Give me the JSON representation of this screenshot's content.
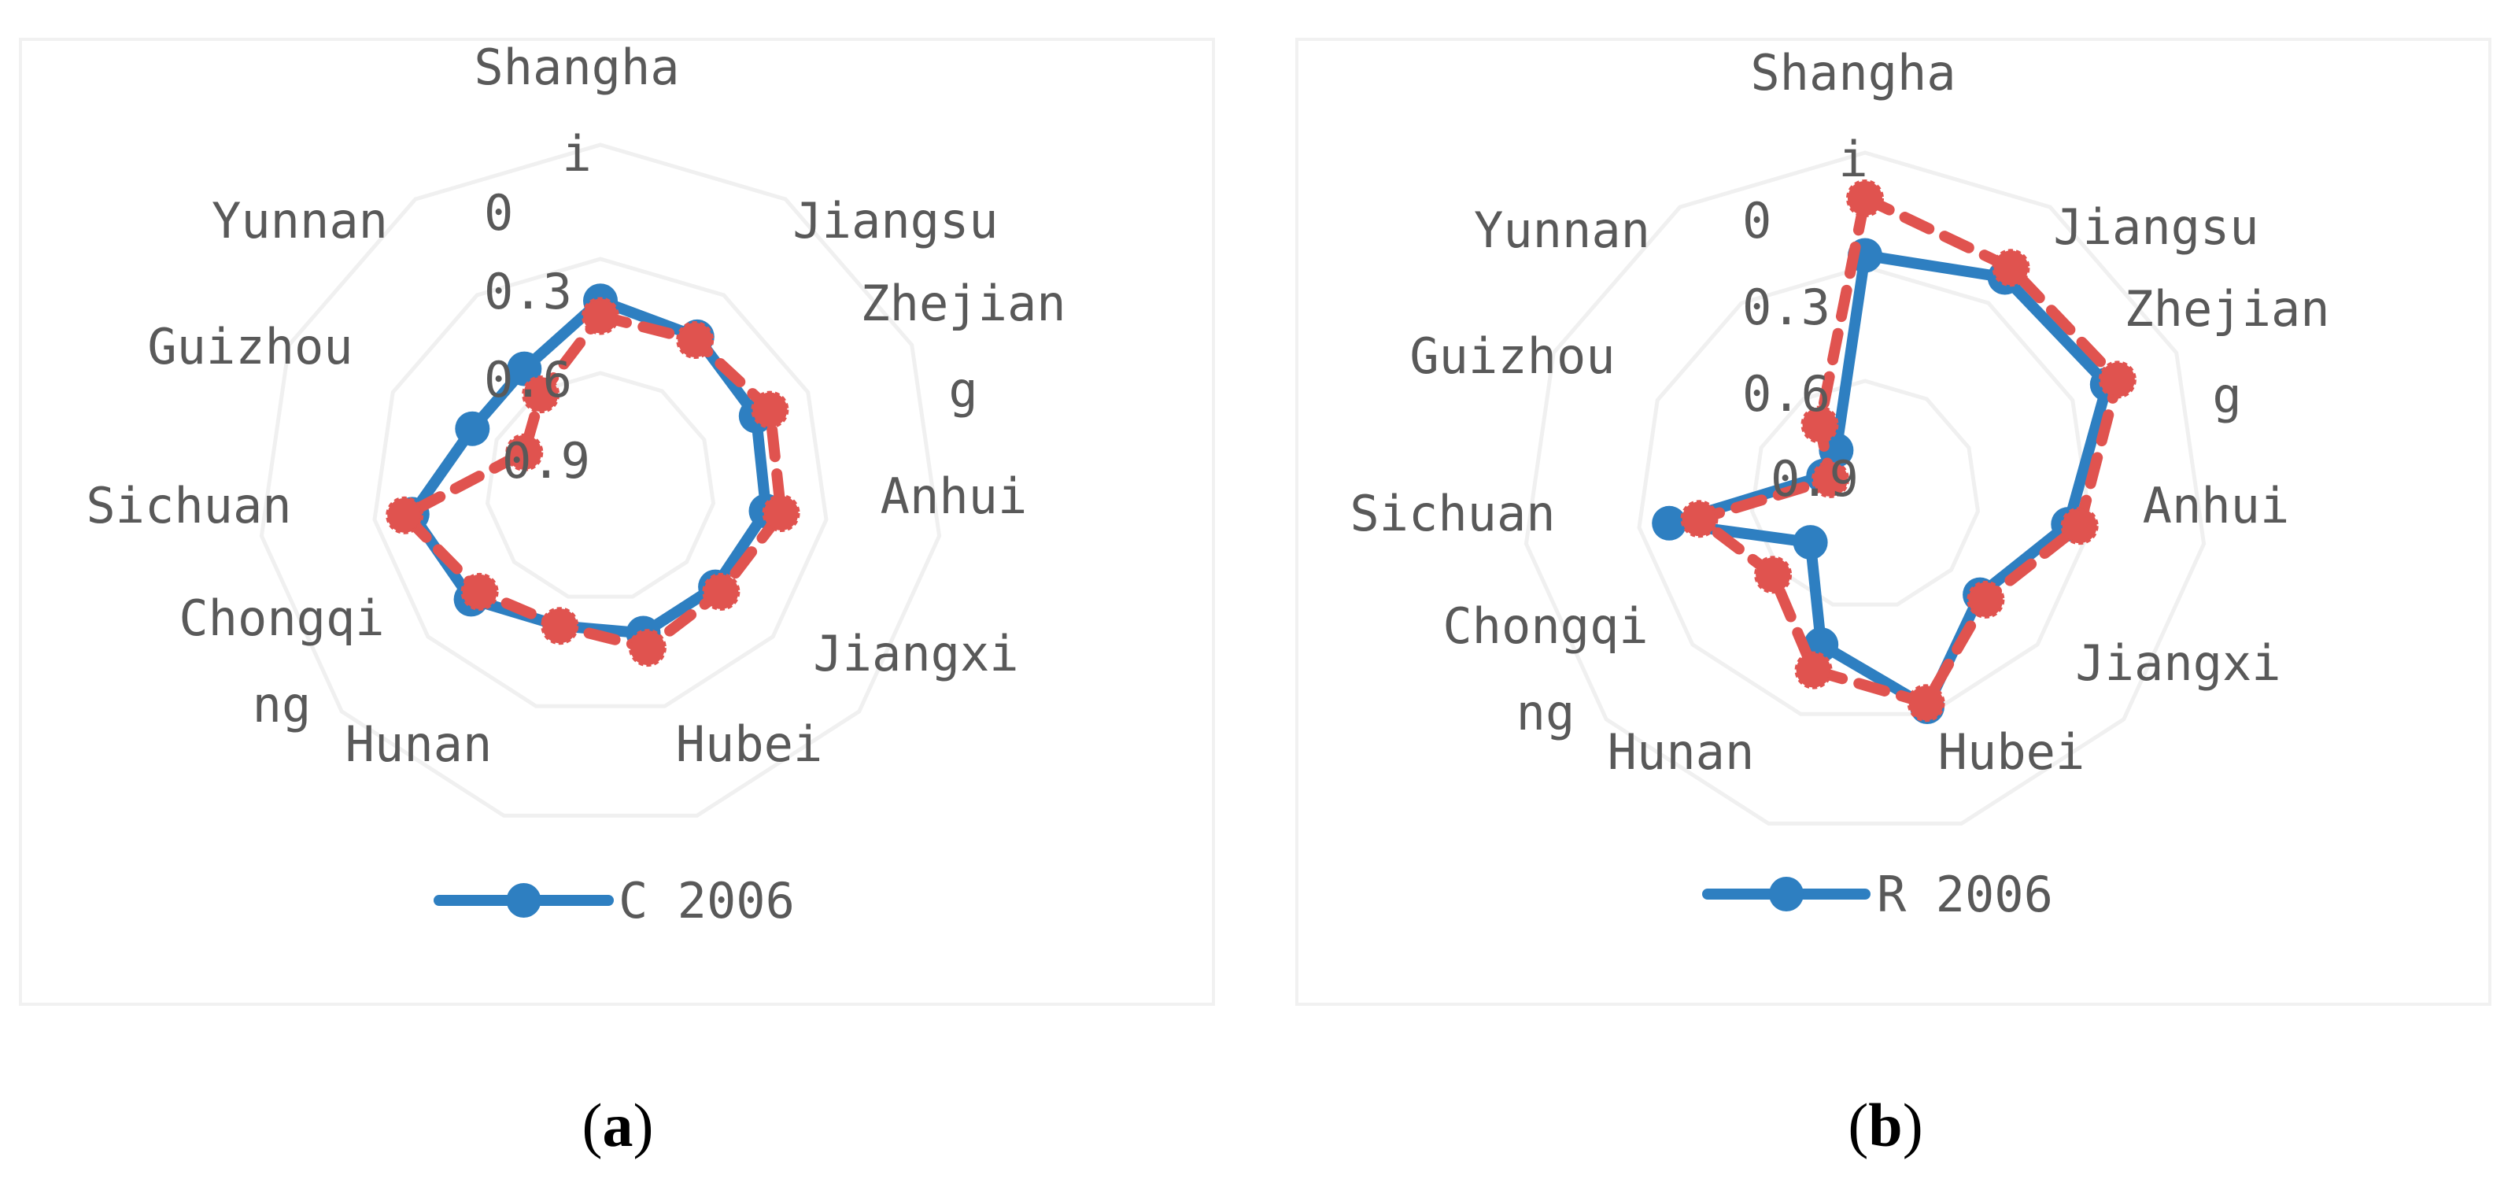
{
  "chart_data": [
    {
      "type": "radar",
      "panel": "a",
      "categories": [
        "Shanghai",
        "Jiangsu",
        "Zhejiang",
        "Anhui",
        "Jiangxi",
        "Hubei",
        "Hunan",
        "Chongqing",
        "Sichuan",
        "Guizhou",
        "Yunnan"
      ],
      "category_label_lines": [
        [
          "Shangha",
          "i"
        ],
        [
          "Jiangsu"
        ],
        [
          "Zhejian",
          "g"
        ],
        [
          "Anhui"
        ],
        [
          "Jiangxi"
        ],
        [
          "Hubei"
        ],
        [
          "Hunan"
        ],
        [
          "Chongqi",
          "ng"
        ],
        [
          "Sichuan"
        ],
        [
          "Guizhou"
        ],
        [
          "Yunnan"
        ]
      ],
      "ticks": [
        "0",
        "0.3",
        "0.6",
        "0.9"
      ],
      "rlim": [
        0,
        0.9
      ],
      "grid": true,
      "legend_position": "bottom",
      "series": [
        {
          "name": "C 2006",
          "color": "#2e7fc1",
          "line": "solid",
          "values": [
            0.49,
            0.47,
            0.45,
            0.44,
            0.4,
            0.4,
            0.38,
            0.45,
            0.5,
            0.37,
            0.37
          ]
        },
        {
          "color": "#e0534f",
          "line": "dashed",
          "values": [
            0.45,
            0.46,
            0.49,
            0.48,
            0.42,
            0.44,
            0.38,
            0.42,
            0.52,
            0.22,
            0.29
          ]
        }
      ]
    },
    {
      "type": "radar",
      "panel": "b",
      "categories": [
        "Shanghai",
        "Jiangsu",
        "Zhejiang",
        "Anhui",
        "Jiangxi",
        "Hubei",
        "Hunan",
        "Chongqing",
        "Sichuan",
        "Guizhou",
        "Yunnan"
      ],
      "category_label_lines": [
        [
          "Shangha",
          "i"
        ],
        [
          "Jiangsu"
        ],
        [
          "Zhejian",
          "g"
        ],
        [
          "Anhui"
        ],
        [
          "Jiangxi"
        ],
        [
          "Hubei"
        ],
        [
          "Hunan"
        ],
        [
          "Chongqi",
          "ng"
        ],
        [
          "Sichuan"
        ],
        [
          "Guizhou"
        ],
        [
          "Yunnan"
        ]
      ],
      "ticks": [
        "0",
        "0.3",
        "0.6",
        "0.9"
      ],
      "rlim": [
        0,
        0.9
      ],
      "grid": true,
      "legend_position": "bottom",
      "series": [
        {
          "name": "R 2006",
          "color": "#2e7fc1",
          "line": "solid",
          "values": [
            0.63,
            0.68,
            0.7,
            0.54,
            0.4,
            0.58,
            0.41,
            0.19,
            0.52,
            0.12,
            0.14
          ]
        },
        {
          "color": "#e0534f",
          "line": "dashed",
          "values": [
            0.78,
            0.71,
            0.73,
            0.57,
            0.42,
            0.57,
            0.48,
            0.32,
            0.44,
            0.1,
            0.22
          ]
        }
      ]
    }
  ],
  "captions": [
    "a",
    "b"
  ]
}
